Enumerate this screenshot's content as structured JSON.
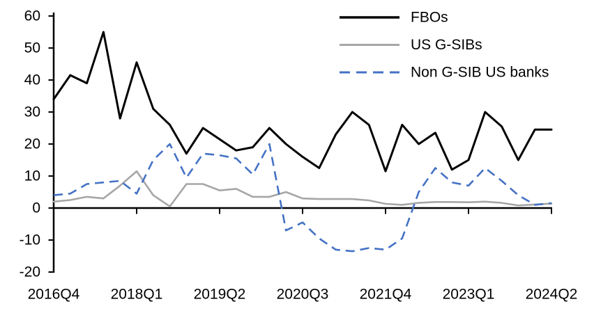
{
  "chart_data": {
    "type": "line",
    "title": "",
    "xlabel": "",
    "ylabel": "",
    "grid": false,
    "categories": [
      "2016Q4",
      "2017Q1",
      "2017Q2",
      "2017Q3",
      "2017Q4",
      "2018Q1",
      "2018Q2",
      "2018Q3",
      "2018Q4",
      "2019Q1",
      "2019Q2",
      "2019Q3",
      "2019Q4",
      "2020Q1",
      "2020Q2",
      "2020Q3",
      "2020Q4",
      "2021Q1",
      "2021Q2",
      "2021Q3",
      "2021Q4",
      "2022Q1",
      "2022Q2",
      "2022Q3",
      "2022Q4",
      "2023Q1",
      "2023Q2",
      "2023Q3",
      "2023Q4",
      "2024Q1",
      "2024Q2"
    ],
    "series": [
      {
        "name": "FBOs",
        "color": "#000000",
        "line_style": "solid",
        "values": [
          34,
          41.5,
          39,
          55,
          28,
          45.5,
          31,
          26,
          17,
          25,
          21.5,
          18,
          19,
          25,
          20,
          16,
          12.5,
          23,
          30,
          26,
          11.5,
          26,
          20,
          23.5,
          12,
          15,
          30,
          25.5,
          15,
          24.5,
          24.5
        ]
      },
      {
        "name": "US G-SIBs",
        "color": "#A6A6A6",
        "line_style": "solid",
        "values": [
          2,
          2.5,
          3.5,
          3,
          7,
          11.5,
          4,
          0.5,
          7.5,
          7.5,
          5.5,
          6,
          3.5,
          3.5,
          5,
          3,
          2.8,
          2.8,
          2.8,
          2.4,
          1.3,
          1,
          1.6,
          1.9,
          1.9,
          1.8,
          2,
          1.6,
          0.8,
          1.1,
          1.4
        ]
      },
      {
        "name": "Non G-SIB US banks",
        "color": "#4472C4",
        "line_style": "dashed",
        "values": [
          4,
          4.5,
          7.5,
          8,
          8.5,
          4.5,
          15,
          20,
          9.5,
          17,
          16.5,
          15.5,
          10.5,
          20,
          -7,
          -4.5,
          -9.5,
          -13,
          -13.5,
          -12.5,
          -13,
          -9.5,
          5,
          12.5,
          8,
          7,
          12.5,
          8.5,
          4,
          1,
          1.5
        ]
      }
    ],
    "x_axis": {
      "tick_labels": [
        "2016Q4",
        "2018Q1",
        "2019Q2",
        "2020Q3",
        "2021Q4",
        "2023Q1",
        "2024Q2"
      ],
      "tick_indices": [
        0,
        5,
        10,
        15,
        20,
        25,
        30
      ]
    },
    "y_axis": {
      "min": -20,
      "max": 60,
      "step": 10,
      "tick_labels": [
        "-20",
        "-10",
        "0",
        "10",
        "20",
        "30",
        "40",
        "50",
        "60"
      ]
    },
    "legend": {
      "position": "top-right",
      "entries": [
        "FBOs",
        "US G-SIBs",
        "Non G-SIB US banks"
      ]
    }
  }
}
